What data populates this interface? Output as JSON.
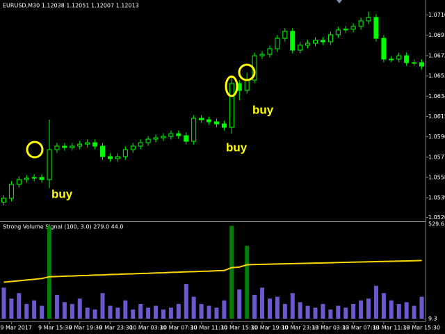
{
  "chart_data": [
    {
      "type": "candlestick",
      "title": "EURUSD,M30  1.12038 1.12051 1.12007 1.12013",
      "categories": [
        null,
        "9 Mar 2017",
        null,
        null,
        null,
        null,
        "9 Mar 15:30",
        null,
        null,
        null,
        "9 Mar 19:30",
        null,
        null,
        null,
        "9 Mar 23:30",
        null,
        null,
        null,
        "10 Mar 03:30",
        null,
        null,
        null,
        "10 Mar 07:30",
        null,
        null,
        null,
        "10 Mar 11:30",
        null,
        null,
        null,
        "10 Mar 15:30",
        null,
        null,
        null,
        "10 Mar 19:30",
        null,
        null,
        null,
        "10 Mar 23:30",
        null,
        null,
        null,
        "13 Mar 03:30",
        null,
        null,
        null,
        "13 Mar 07:30",
        null,
        null,
        null,
        "13 Mar 11:30",
        null,
        null,
        null,
        "13 Mar 15:30",
        null
      ],
      "open": [
        1.0535,
        1.05385,
        1.05515,
        1.0556,
        1.05573,
        1.0558,
        1.0556,
        1.0584,
        1.05873,
        1.0586,
        1.05873,
        1.05892,
        1.05905,
        1.05873,
        1.05775,
        1.05756,
        1.05775,
        1.0584,
        1.05873,
        1.05905,
        1.05938,
        1.05951,
        1.05964,
        1.0599,
        1.05971,
        1.05918,
        1.06133,
        1.0612,
        1.06101,
        1.06081,
        1.06049,
        1.06459,
        1.06394,
        1.06491,
        1.06719,
        1.06732,
        1.06784,
        1.06882,
        1.06947,
        1.06771,
        1.06817,
        1.06836,
        1.06862,
        1.06849,
        1.06915,
        1.0696,
        1.06967,
        1.06993,
        1.07045,
        1.07077,
        1.06882,
        1.06687,
        1.06687,
        1.06719,
        1.06654,
        1.06654
      ],
      "high": [
        1.05415,
        1.05545,
        1.0559,
        1.05603,
        1.0561,
        1.0561,
        1.0612,
        1.05903,
        1.05903,
        1.05903,
        1.05922,
        1.05935,
        1.05935,
        1.05903,
        1.05805,
        1.05805,
        1.0587,
        1.05903,
        1.05935,
        1.05968,
        1.05981,
        1.05994,
        1.0602,
        1.0602,
        1.06001,
        1.06163,
        1.06163,
        1.0615,
        1.06131,
        1.06111,
        1.0652,
        1.06489,
        1.0656,
        1.06749,
        1.06762,
        1.06814,
        1.06912,
        1.06977,
        1.06977,
        1.06847,
        1.06866,
        1.06892,
        1.06892,
        1.06945,
        1.0699,
        1.06997,
        1.07023,
        1.07075,
        1.0713,
        1.07107,
        1.06912,
        1.06717,
        1.06749,
        1.06749,
        1.06684,
        1.06684
      ],
      "low": [
        1.0532,
        1.05355,
        1.05485,
        1.0553,
        1.05543,
        1.0553,
        1.0548,
        1.0581,
        1.0583,
        1.0583,
        1.05843,
        1.05862,
        1.05843,
        1.05745,
        1.05726,
        1.05726,
        1.05745,
        1.0581,
        1.05843,
        1.05875,
        1.05908,
        1.05921,
        1.05934,
        1.05941,
        1.05888,
        1.05888,
        1.0609,
        1.06071,
        1.06051,
        1.06019,
        1.0599,
        1.063,
        1.06364,
        1.06461,
        1.06689,
        1.06702,
        1.06754,
        1.06852,
        1.06741,
        1.06741,
        1.06787,
        1.06806,
        1.06819,
        1.06819,
        1.06885,
        1.0693,
        1.06937,
        1.06963,
        1.07015,
        1.06852,
        1.06657,
        1.06657,
        1.06657,
        1.06624,
        1.06624,
        1.06592
      ],
      "close": [
        1.05385,
        1.05515,
        1.0556,
        1.05573,
        1.0558,
        1.0556,
        1.0584,
        1.05873,
        1.0586,
        1.05873,
        1.05892,
        1.05905,
        1.05873,
        1.05775,
        1.05756,
        1.05775,
        1.0584,
        1.05873,
        1.05905,
        1.05938,
        1.05951,
        1.05964,
        1.0599,
        1.05971,
        1.05918,
        1.06133,
        1.0612,
        1.06101,
        1.06081,
        1.06049,
        1.06459,
        1.06394,
        1.06491,
        1.06719,
        1.06732,
        1.06784,
        1.06882,
        1.06947,
        1.06771,
        1.06817,
        1.06836,
        1.06862,
        1.06849,
        1.06915,
        1.0696,
        1.06967,
        1.06993,
        1.07045,
        1.07077,
        1.06882,
        1.06687,
        1.06687,
        1.06719,
        1.06654,
        1.06654,
        1.06622
      ],
      "color": "#00ff00",
      "up_fill": "#000000",
      "ylim": [
        1.0517,
        1.0724
      ],
      "yticks": [
        {
          "value": 1.071,
          "label": "1.07100"
        },
        {
          "value": 1.0691,
          "label": "1.06910"
        },
        {
          "value": 1.0672,
          "label": "1.06720"
        },
        {
          "value": 1.0653,
          "label": "1.06530"
        },
        {
          "value": 1.0634,
          "label": "1.06340"
        },
        {
          "value": 1.0615,
          "label": "1.06150"
        },
        {
          "value": 1.0596,
          "label": "1.05960"
        },
        {
          "value": 1.0577,
          "label": "1.05770"
        },
        {
          "value": 1.0558,
          "label": "1.05580"
        },
        {
          "value": 1.0539,
          "label": "1.05390"
        },
        1.05205
      ],
      "annotations": [
        "buy",
        "buy",
        "buy"
      ],
      "annotation_color": "#ffff00"
    },
    {
      "type": "bar",
      "title": "Strong Volume Signal (100, 3.0) 279.0 44.0",
      "values": [
        180,
        120,
        150,
        90,
        110,
        80,
        null,
        140,
        100,
        90,
        120,
        70,
        60,
        150,
        80,
        70,
        110,
        60,
        90,
        70,
        80,
        60,
        70,
        90,
        200,
        130,
        90,
        80,
        70,
        110,
        null,
        170,
        null,
        140,
        180,
        120,
        130,
        90,
        150,
        100,
        80,
        70,
        90,
        60,
        80,
        70,
        90,
        110,
        120,
        190,
        150,
        110,
        90,
        100,
        80,
        130
      ],
      "color": "#6a5acd",
      "signal_values": [
        null,
        null,
        null,
        null,
        null,
        null,
        520,
        null,
        null,
        null,
        null,
        null,
        null,
        null,
        null,
        null,
        null,
        null,
        null,
        null,
        null,
        null,
        null,
        null,
        null,
        null,
        null,
        null,
        null,
        null,
        520,
        null,
        410,
        null,
        null,
        null,
        null,
        null,
        null,
        null,
        null,
        null,
        null,
        null,
        null,
        null,
        null,
        null,
        null,
        null,
        null,
        null,
        null,
        null,
        null,
        null
      ],
      "signal_color": "#008000",
      "ma_values": [
        210,
        214,
        218,
        222,
        226,
        230,
        240,
        241,
        243,
        244,
        246,
        247,
        249,
        250,
        252,
        253,
        255,
        256,
        258,
        259,
        261,
        262,
        264,
        265,
        267,
        268,
        270,
        271,
        273,
        274,
        290,
        293,
        306,
        307,
        308,
        309,
        310,
        311,
        312,
        313,
        314,
        315,
        316,
        317,
        318,
        319,
        320,
        321,
        322,
        323,
        324,
        325,
        326,
        327,
        328,
        329
      ],
      "ma_color": "#ffd700",
      "ylim": [
        9.3,
        529.6
      ],
      "yticks": [
        529.6,
        9.3
      ]
    }
  ]
}
